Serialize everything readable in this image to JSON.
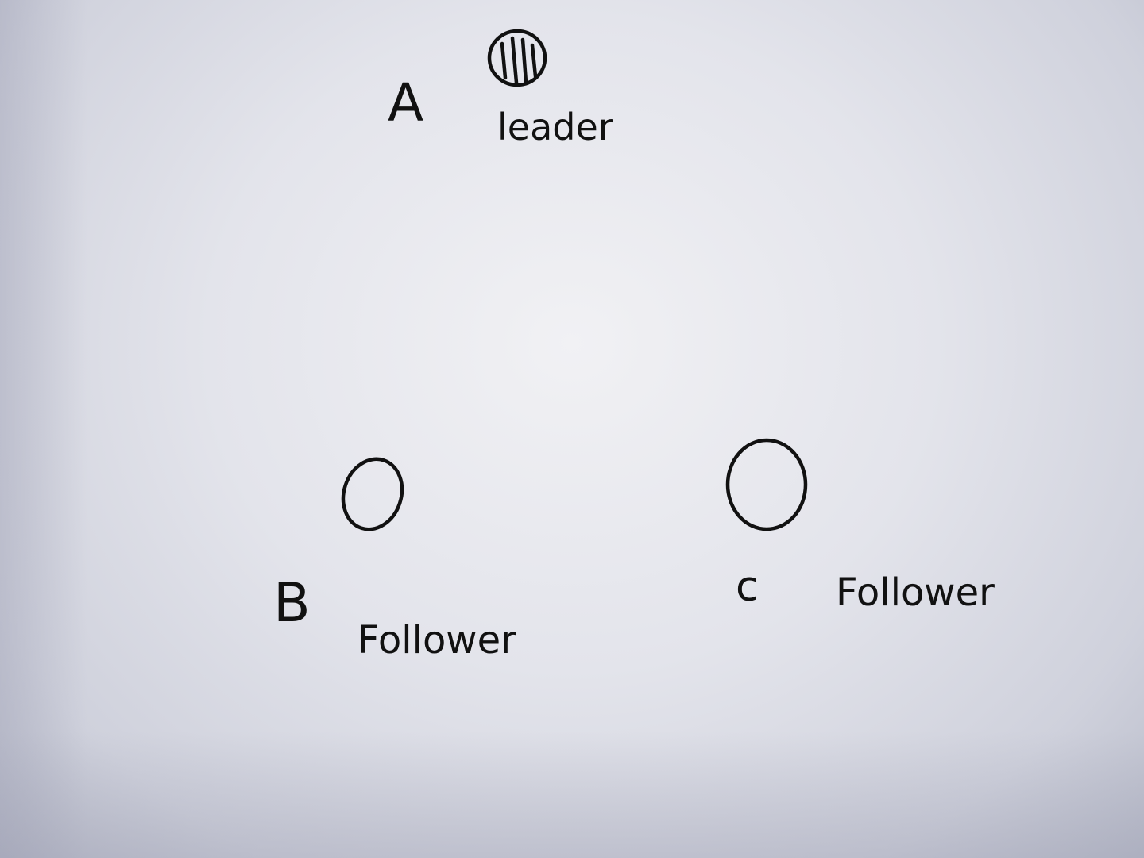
{
  "nodes": [
    {
      "id": "A",
      "letter": "A",
      "role": "leader",
      "hatched": true
    },
    {
      "id": "B",
      "letter": "B",
      "role": "Follower",
      "hatched": false
    },
    {
      "id": "C",
      "letter": "c",
      "role": "Follower",
      "hatched": false
    }
  ],
  "colors": {
    "ink": "#111111",
    "paper": "#e6e7ee"
  }
}
